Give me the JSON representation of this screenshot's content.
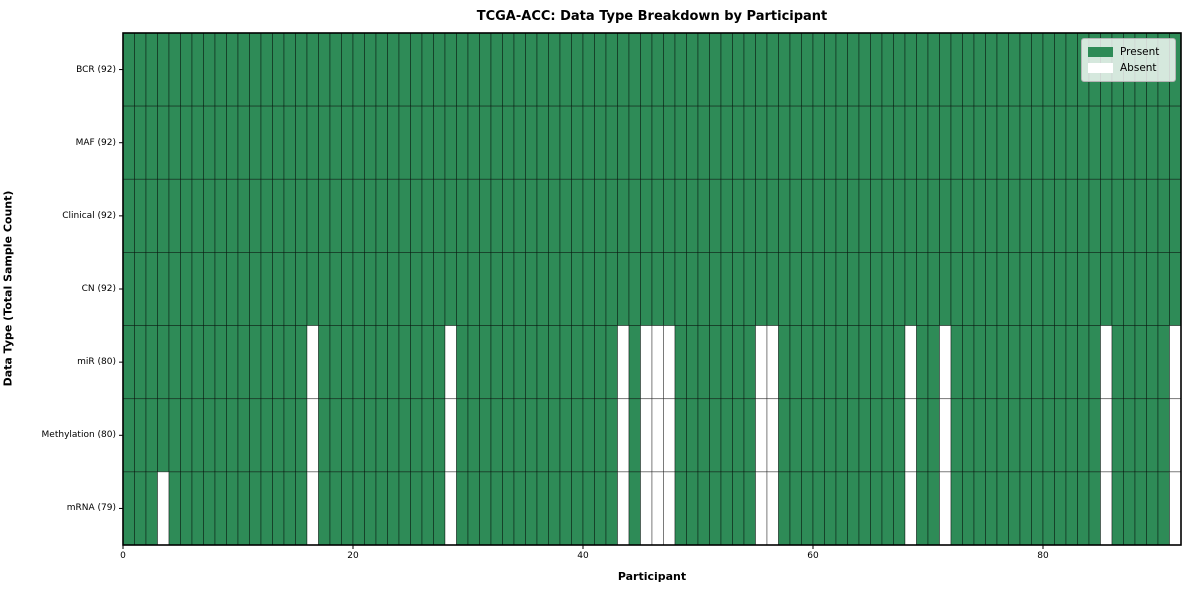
{
  "chart_data": {
    "type": "heatmap",
    "title": "TCGA-ACC: Data Type Breakdown by Participant",
    "xlabel": "Participant",
    "ylabel": "Data Type (Total Sample Count)",
    "n_participants": 92,
    "x_range": [
      0,
      92
    ],
    "x_ticks": [
      0,
      20,
      40,
      60,
      80
    ],
    "grid": false,
    "legend_position": "upper-right",
    "rows": [
      {
        "label": "BCR (92)",
        "data_type": "BCR",
        "present_count": 92,
        "absent_participants": []
      },
      {
        "label": "MAF (92)",
        "data_type": "MAF",
        "present_count": 92,
        "absent_participants": []
      },
      {
        "label": "Clinical (92)",
        "data_type": "Clinical",
        "present_count": 92,
        "absent_participants": []
      },
      {
        "label": "CN (92)",
        "data_type": "CN",
        "present_count": 92,
        "absent_participants": []
      },
      {
        "label": "miR (80)",
        "data_type": "miR",
        "present_count": 80,
        "absent_participants": [
          16,
          28,
          43,
          45,
          46,
          47,
          55,
          56,
          68,
          71,
          85,
          91
        ]
      },
      {
        "label": "Methylation (80)",
        "data_type": "Methylation",
        "present_count": 80,
        "absent_participants": [
          16,
          28,
          43,
          45,
          46,
          47,
          55,
          56,
          68,
          71,
          85,
          91
        ]
      },
      {
        "label": "mRNA (79)",
        "data_type": "mRNA",
        "present_count": 79,
        "absent_participants": [
          3,
          16,
          28,
          43,
          45,
          46,
          47,
          55,
          56,
          68,
          71,
          85,
          91
        ]
      }
    ],
    "legend": [
      {
        "label": "Present",
        "color": "#2e8b57"
      },
      {
        "label": "Absent",
        "color": "#ffffff"
      }
    ],
    "colors": {
      "present": "#2e8b57",
      "absent": "#ffffff",
      "cell_edge": "rgba(0,0,0,0.5)",
      "frame": "#000000"
    }
  }
}
